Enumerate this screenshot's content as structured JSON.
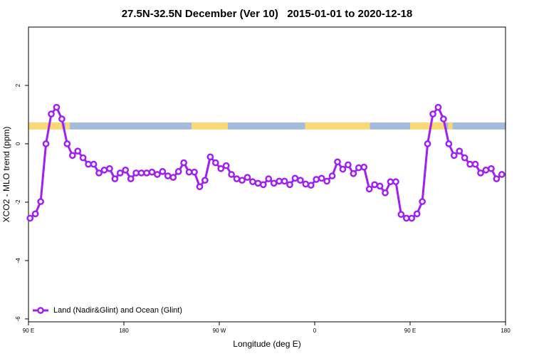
{
  "chart_data": {
    "type": "line",
    "title": "27.5N-32.5N December (Ver 10)   2015-01-01 to 2020-12-18",
    "xlabel": "Longitude (deg E)",
    "ylabel": "XCO2 - MLO trend (ppm)",
    "xlim": [
      90,
      540
    ],
    "ylim": [
      -6.1,
      4
    ],
    "xticks": [
      {
        "value": 90,
        "label": "90 E"
      },
      180,
      {
        "value": 270,
        "label": "90 W"
      },
      {
        "value": 360,
        "label": "0"
      },
      {
        "value": 450,
        "label": "90 E"
      },
      {
        "value": 540,
        "label": "180"
      }
    ],
    "yticks": [
      -6,
      -4,
      -2,
      0,
      2
    ],
    "legend": "bottom-left",
    "x": [
      91.5,
      96.5,
      101.5,
      106.5,
      111.5,
      116.5,
      121.5,
      126.5,
      131.5,
      136.5,
      141.5,
      146.5,
      151.5,
      156.5,
      161.5,
      166.5,
      171.5,
      176.5,
      181.5,
      186.5,
      191.5,
      196.5,
      201.5,
      206.5,
      211.5,
      216.5,
      221.5,
      226.5,
      231.5,
      236.5,
      241.5,
      246.5,
      251.5,
      256.5,
      261.5,
      266.5,
      271.5,
      276.5,
      281.5,
      286.5,
      291.5,
      296.5,
      301.5,
      306.5,
      311.5,
      316.5,
      321.5,
      326.5,
      331.5,
      336.5,
      341.5,
      346.5,
      351.5,
      356.5,
      361.5,
      366.5,
      371.5,
      376.5,
      381.5,
      386.5,
      391.5,
      396.5,
      401.5,
      406.5,
      411.5,
      416.5,
      421.5,
      426.5,
      431.5,
      436.5,
      441.5,
      446.5,
      451.5,
      456.5,
      461.5,
      466.5,
      471.5,
      476.5,
      481.5,
      486.5,
      491.5,
      496.5,
      501.5,
      506.5,
      511.5,
      516.5,
      521.5,
      526.5,
      531.5,
      536.5
    ],
    "series": [
      {
        "name": "Land (Nadir&Glint) and Ocean (Glint)",
        "color": "#a020f0",
        "values": [
          -2.55,
          -2.4,
          -1.98,
          0,
          1.02,
          1.25,
          0.85,
          0,
          -0.4,
          -0.25,
          -0.48,
          -0.7,
          -0.7,
          -1.0,
          -0.9,
          -0.85,
          -1.2,
          -1.0,
          -0.9,
          -1.2,
          -1.0,
          -1.0,
          -1.0,
          -0.97,
          -1.05,
          -0.95,
          -1.1,
          -1.15,
          -0.95,
          -0.65,
          -0.97,
          -0.97,
          -1.47,
          -1.25,
          -0.45,
          -0.65,
          -0.85,
          -0.75,
          -1.05,
          -1.2,
          -1.25,
          -1.15,
          -1.3,
          -1.35,
          -1.4,
          -1.2,
          -1.35,
          -1.28,
          -1.28,
          -1.4,
          -1.18,
          -1.25,
          -1.38,
          -1.42,
          -1.22,
          -1.18,
          -1.28,
          -1.1,
          -0.62,
          -0.87,
          -0.72,
          -1.02,
          -0.82,
          -0.8,
          -1.55,
          -1.4,
          -1.45,
          -1.68,
          -1.3,
          -1.3,
          -2.42,
          -2.55,
          -2.55,
          -2.4,
          -1.98,
          0,
          1.02,
          1.25,
          0.85,
          0,
          -0.4,
          -0.25,
          -0.48,
          -0.7,
          -0.7,
          -1.0,
          -0.9,
          -0.85,
          -1.2,
          -1.05
        ]
      }
    ],
    "surface_band": {
      "y": [
        0.49,
        0.73
      ],
      "land_color": "#fbd876",
      "ocean_color": "#a4bcdc",
      "segments": [
        {
          "x": [
            90,
            122
          ],
          "surface": "land"
        },
        {
          "x": [
            122,
            125
          ],
          "surface": "ocean"
        },
        {
          "x": [
            125,
            129
          ],
          "surface": "land"
        },
        {
          "x": [
            129,
            244
          ],
          "surface": "ocean"
        },
        {
          "x": [
            244,
            278
          ],
          "surface": "land"
        },
        {
          "x": [
            278,
            351
          ],
          "surface": "ocean"
        },
        {
          "x": [
            351,
            412
          ],
          "surface": "land"
        },
        {
          "x": [
            412,
            450
          ],
          "surface": "ocean"
        },
        {
          "x": [
            450,
            483
          ],
          "surface": "land"
        },
        {
          "x": [
            483,
            486
          ],
          "surface": "ocean"
        },
        {
          "x": [
            486,
            490
          ],
          "surface": "land"
        },
        {
          "x": [
            490,
            540
          ],
          "surface": "ocean"
        }
      ]
    }
  }
}
